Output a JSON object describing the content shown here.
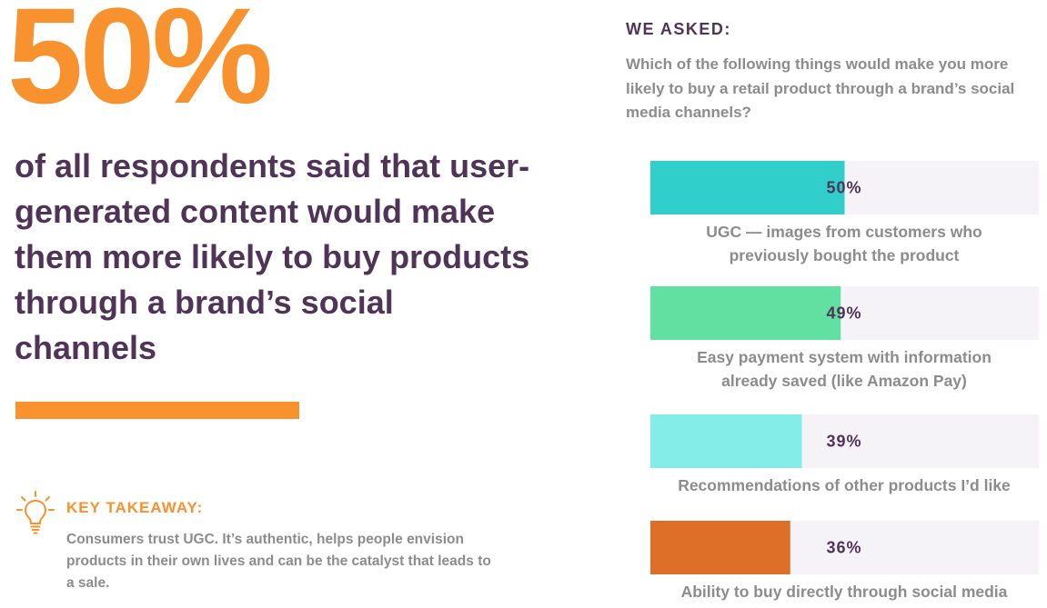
{
  "stat": {
    "value": "50%"
  },
  "headline": "of all respondents said that user-generated content would make them more likely to buy products through a brand’s social channels",
  "takeaway": {
    "icon": "lightbulb-icon",
    "title": "KEY TAKEAWAY:",
    "text": "Consumers trust UGC. It’s authentic, helps people envision products in their own lives and can be the catalyst that leads to a sale."
  },
  "survey": {
    "asked_label": "WE ASKED:",
    "question": "Which of the following things would make you more likely to buy a retail product through a brand’s social media channels?"
  },
  "colors": {
    "orange": "#f7922e",
    "purple": "#4f3458",
    "gray_text": "#8c8c8c",
    "track": "#f5f3f8"
  },
  "chart_data": {
    "type": "bar",
    "orientation": "horizontal",
    "xlim": [
      0,
      100
    ],
    "categories": [
      [
        "UGC — images from customers who",
        "previously bought the product"
      ],
      [
        "Easy payment system with information",
        "already saved (like Amazon Pay)"
      ],
      [
        "Recommendations of other products I’d like"
      ],
      [
        "Ability to buy directly through social media"
      ]
    ],
    "values": [
      50,
      49,
      39,
      36
    ],
    "value_labels": [
      "50%",
      "49%",
      "39%",
      "36%"
    ],
    "bar_colors": [
      "#31cfcc",
      "#62e0a2",
      "#85ede8",
      "#de6f28"
    ]
  }
}
